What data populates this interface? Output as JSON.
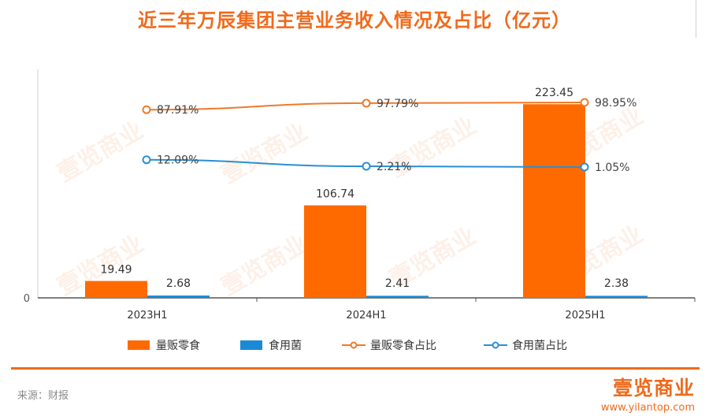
{
  "title": "近三年万辰集团主营业务收入情况及占比（亿元）",
  "footer": {
    "source": "来源：财报",
    "brand_name": "壹览商业",
    "brand_url": "www.yilantop.com"
  },
  "watermark": "壹览商业",
  "colors": {
    "accent": "#f06a1b",
    "bar_primary": "#ff6a00",
    "bar_secondary": "#1a8ad6",
    "line_primary": "#f07a2a",
    "line_secondary": "#2a8fd6"
  },
  "chart_data": {
    "type": "bar",
    "categories": [
      "2023H1",
      "2024H1",
      "2025H1"
    ],
    "y_ticks": [
      "0"
    ],
    "ylim": [
      0,
      240
    ],
    "series": [
      {
        "name": "量贩零食",
        "type": "bar",
        "values": [
          19.49,
          106.74,
          223.45
        ],
        "labels": [
          "19.49",
          "106.74",
          "223.45"
        ]
      },
      {
        "name": "食用菌",
        "type": "bar",
        "values": [
          2.68,
          2.41,
          2.38
        ],
        "labels": [
          "2.68",
          "2.41",
          "2.38"
        ]
      },
      {
        "name": "量贩零食占比",
        "type": "line",
        "values": [
          87.91,
          97.79,
          98.95
        ],
        "labels": [
          "87.91%",
          "97.79%",
          "98.95%"
        ]
      },
      {
        "name": "食用菌占比",
        "type": "line",
        "values": [
          12.09,
          2.21,
          1.05
        ],
        "labels": [
          "12.09%",
          "2.21%",
          "1.05%"
        ]
      }
    ],
    "legend_position": "bottom"
  }
}
